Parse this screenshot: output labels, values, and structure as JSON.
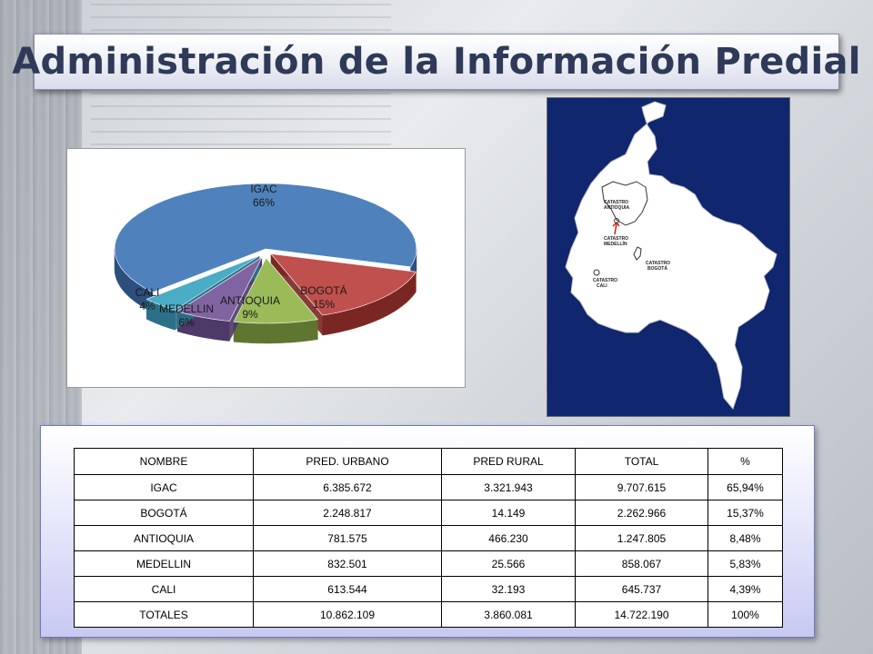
{
  "title": "Administración de la Información Predial",
  "chart_data": {
    "type": "pie",
    "categories": [
      "IGAC",
      "BOGOTÁ",
      "ANTIOQUIA",
      "MEDELLIN",
      "CALI"
    ],
    "values": [
      66,
      15,
      9,
      6,
      4
    ],
    "value_labels": [
      "66%",
      "15%",
      "9%",
      "6%",
      "4%"
    ],
    "colors": [
      "#4f81bd",
      "#c0504d",
      "#9bbb59",
      "#8064a2",
      "#4bacc6"
    ],
    "dark_colors": [
      "#2c4f7c",
      "#7a2622",
      "#5f7630",
      "#4d3a68",
      "#2b7088"
    ],
    "style": "3d-exploded",
    "legend": "none"
  },
  "map": {
    "labels": [
      {
        "id": "antioquia",
        "line1": "CATASTRO",
        "line2": "ANTIOQUIA"
      },
      {
        "id": "medellin",
        "line1": "CATASTRO",
        "line2": "MEDELLÍN"
      },
      {
        "id": "bogota",
        "line1": "CATASTRO",
        "line2": "BOGOTÁ"
      },
      {
        "id": "cali",
        "line1": "CATASTRO",
        "line2": "CALI"
      }
    ],
    "background_color": "#10266e",
    "land_color": "#ffffff"
  },
  "table": {
    "headers": [
      "NOMBRE",
      "PRED. URBANO",
      "PRED RURAL",
      "TOTAL",
      "%"
    ],
    "rows": [
      [
        "IGAC",
        "6.385.672",
        "3.321.943",
        "9.707.615",
        "65,94%"
      ],
      [
        "BOGOTÁ",
        "2.248.817",
        "14.149",
        "2.262.966",
        "15,37%"
      ],
      [
        "ANTIOQUIA",
        "781.575",
        "466.230",
        "1.247.805",
        "8,48%"
      ],
      [
        "MEDELLIN",
        "832.501",
        "25.566",
        "858.067",
        "5,83%"
      ],
      [
        "CALI",
        "613.544",
        "32.193",
        "645.737",
        "4,39%"
      ],
      [
        "TOTALES",
        "10.862.109",
        "3.860.081",
        "14.722.190",
        "100%"
      ]
    ]
  }
}
